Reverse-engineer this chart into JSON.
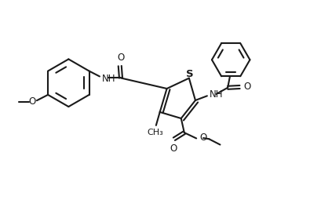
{
  "background_color": "#ffffff",
  "line_color": "#1a1a1a",
  "line_width": 1.5,
  "fig_width": 4.09,
  "fig_height": 2.64,
  "dpi": 100,
  "xlim": [
    0,
    10
  ],
  "ylim": [
    0,
    6.5
  ]
}
